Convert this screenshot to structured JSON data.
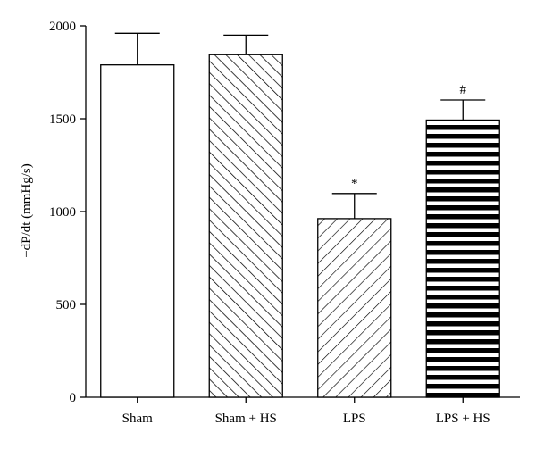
{
  "chart_data": {
    "type": "bar",
    "title": "",
    "xlabel": "",
    "ylabel": "+dP/dt (mmHg/s)",
    "ylim": [
      0,
      2000
    ],
    "yticks": [
      0,
      500,
      1000,
      1500,
      2000
    ],
    "categories": [
      "Sham",
      "Sham + HS",
      "LPS",
      "LPS + HS"
    ],
    "values": [
      1790,
      1845,
      962,
      1493
    ],
    "errors": [
      170,
      105,
      135,
      108
    ],
    "fills": [
      "plain",
      "diagonal-backslash-wide",
      "diagonal-slash-wide",
      "horizontal-stripes"
    ],
    "annotations": [
      "",
      "",
      "*",
      "#"
    ],
    "grid": false,
    "legend": "none"
  }
}
